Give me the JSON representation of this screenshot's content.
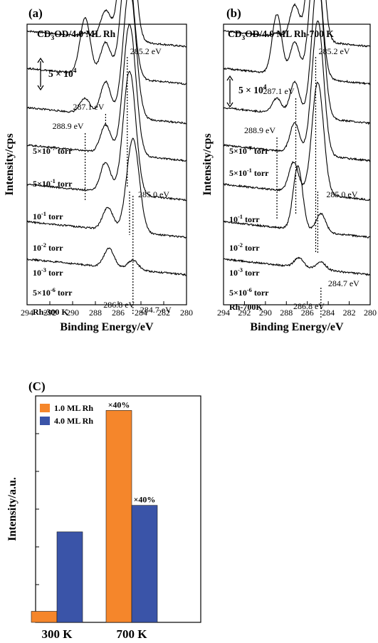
{
  "chart_data": [
    {
      "type": "line",
      "panel_label": "(a)",
      "title": "CD3OD/4.0 ML Rh",
      "title_parts": [
        "CD",
        "3",
        "OD/4.0 ML Rh"
      ],
      "xlabel": "Binding Energy/eV",
      "ylabel": "Intensity/cps",
      "xlim": [
        294,
        280
      ],
      "xticks": [
        294,
        292,
        290,
        288,
        286,
        284,
        282,
        280
      ],
      "scale_bar_label": [
        "5 × 10",
        "4"
      ],
      "series": [
        {
          "name": "5×10⁻⁷ torr",
          "label_parts": [
            "5×10",
            "-7",
            " torr"
          ],
          "baseline": 138,
          "peaks": [
            [
              288.9,
              2
            ],
            [
              287.1,
              15
            ],
            [
              285.2,
              90
            ]
          ]
        },
        {
          "name": "5×10⁻¹ torr",
          "label_parts": [
            "5×10",
            "-1",
            " torr"
          ],
          "baseline": 118,
          "peaks": [
            [
              288.9,
              30
            ],
            [
              287.1,
              18
            ],
            [
              285.2,
              64
            ]
          ]
        },
        {
          "name": "10⁻¹ torr",
          "label_parts": [
            "10",
            "-1",
            " torr"
          ],
          "baseline": 97,
          "peaks": [
            [
              288.9,
              8
            ],
            [
              287.1,
              18
            ],
            [
              285.0,
              70
            ]
          ]
        },
        {
          "name": "10⁻² torr",
          "label_parts": [
            "10",
            "-2",
            " torr"
          ],
          "baseline": 77,
          "peaks": [
            [
              287.1,
              15
            ],
            [
              285.0,
              70
            ]
          ]
        },
        {
          "name": "10⁻³ torr",
          "label_parts": [
            "10",
            "-3",
            " torr"
          ],
          "baseline": 56,
          "peaks": [
            [
              287.1,
              16
            ],
            [
              285.0,
              66
            ]
          ]
        },
        {
          "name": "5×10⁻⁶ torr",
          "label_parts": [
            "5×10",
            "-6",
            " torr"
          ],
          "baseline": 36,
          "peaks": [
            [
              286.9,
              12
            ],
            [
              284.7,
              50
            ]
          ]
        },
        {
          "name": "Rh-300 K",
          "label_parts": [
            "Rh-300 K",
            "",
            ""
          ],
          "baseline": 16,
          "peaks": [
            [
              286.8,
              10
            ],
            [
              284.7,
              5
            ]
          ]
        }
      ],
      "annotations": [
        {
          "text": "285.2 eV",
          "x": 285.2
        },
        {
          "text": "287.1 eV",
          "x": 287.1
        },
        {
          "text": "288.9 eV",
          "x": 288.9
        },
        {
          "text": "285.0 eV",
          "x": 285.0
        },
        {
          "text": "284.7 eV",
          "x": 284.7
        },
        {
          "text": "286.8 eV",
          "x": 286.8
        }
      ]
    },
    {
      "type": "line",
      "panel_label": "(b)",
      "title": "CD3OD/4.0 ML Rh-700 K",
      "title_parts": [
        "CD",
        "3",
        "OD/4.0 ML Rh-700 K"
      ],
      "xlabel": "Binding Energy/eV",
      "ylabel": "Intensity/cps",
      "xlim": [
        294,
        280
      ],
      "xticks": [
        294,
        292,
        290,
        288,
        286,
        284,
        282,
        280
      ],
      "scale_bar_label": [
        "5 × 10",
        "4"
      ],
      "series": [
        {
          "name": "5×10⁻⁷ torr",
          "label_parts": [
            "5×10",
            "-7",
            " torr"
          ],
          "baseline": 138,
          "peaks": [
            [
              288.9,
              2
            ],
            [
              287.2,
              18
            ],
            [
              285.2,
              115
            ]
          ]
        },
        {
          "name": "5×10⁻¹ torr",
          "label_parts": [
            "5×10",
            "-1",
            " torr"
          ],
          "baseline": 118,
          "peaks": [
            [
              288.9,
              32
            ],
            [
              287.2,
              18
            ],
            [
              285.2,
              70
            ]
          ]
        },
        {
          "name": "10⁻¹ torr",
          "label_parts": [
            "10",
            "-1",
            " torr"
          ],
          "baseline": 97,
          "peaks": [
            [
              288.9,
              8
            ],
            [
              287.2,
              18
            ],
            [
              285.0,
              75
            ]
          ]
        },
        {
          "name": "10⁻² torr",
          "label_parts": [
            "10",
            "-2",
            " torr"
          ],
          "baseline": 77,
          "peaks": [
            [
              287.2,
              16
            ],
            [
              285.0,
              72
            ]
          ]
        },
        {
          "name": "10⁻³ torr",
          "label_parts": [
            "10",
            "-3",
            " torr"
          ],
          "baseline": 56,
          "peaks": [
            [
              287.3,
              16
            ],
            [
              285.0,
              60
            ]
          ]
        },
        {
          "name": "5×10⁻⁶ torr",
          "label_parts": [
            "5×10",
            "-6",
            " torr"
          ],
          "baseline": 36,
          "peaks": [
            [
              286.9,
              34
            ],
            [
              284.7,
              10
            ]
          ]
        },
        {
          "name": "Rh-700K",
          "label_parts": [
            "Rh-700K",
            "",
            ""
          ],
          "baseline": 16,
          "peaks": [
            [
              286.8,
              5
            ],
            [
              284.7,
              4
            ]
          ]
        }
      ],
      "annotations": [
        {
          "text": "285.2 eV",
          "x": 285.2
        },
        {
          "text": "287.1 eV",
          "x": 287.1
        },
        {
          "text": "288.9 eV",
          "x": 288.9
        },
        {
          "text": "285.0 eV",
          "x": 285.0
        },
        {
          "text": "284.7 eV",
          "x": 284.7
        },
        {
          "text": "286.8 eV",
          "x": 286.8
        }
      ]
    },
    {
      "type": "bar",
      "panel_label": "(C)",
      "ylabel": "Intensity/a.u.",
      "categories": [
        "300 K",
        "700 K"
      ],
      "ylim": [
        0,
        100
      ],
      "series": [
        {
          "name": "1.0 ML Rh",
          "color": "#f5862b",
          "values": [
            5,
            96
          ],
          "bar_labels": [
            "",
            "×40%"
          ]
        },
        {
          "name": "4.0 ML Rh",
          "color": "#3a54a8",
          "values": [
            41,
            53
          ],
          "bar_labels": [
            "",
            "×40%"
          ]
        }
      ]
    }
  ]
}
